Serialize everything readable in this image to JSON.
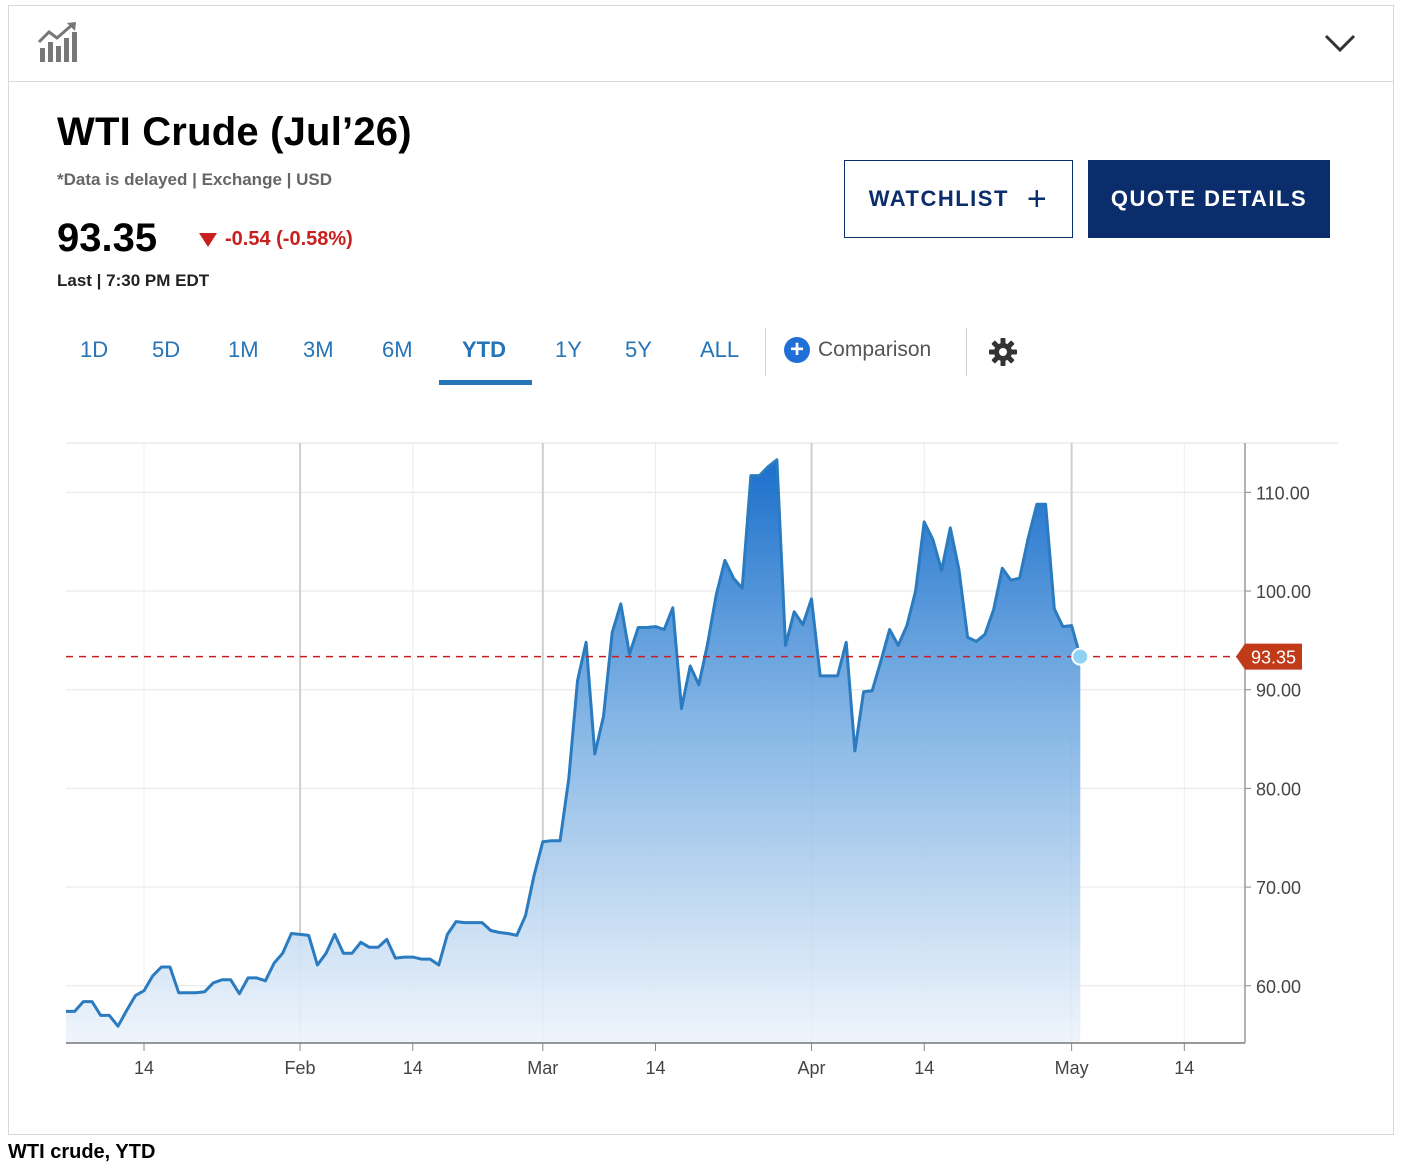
{
  "header": {
    "chart_icon": "bar-chart-trend-icon",
    "collapse_icon": "chevron-down-icon"
  },
  "quote": {
    "title": "WTI Crude (Jul’26)",
    "subline": "*Data is delayed | Exchange | USD",
    "price": "93.35",
    "change": "-0.54 (-0.58%)",
    "last": "Last | 7:30 PM EDT"
  },
  "buttons": {
    "watchlist": "WATCHLIST",
    "watchlist_icon": "plus-icon",
    "quote_details": "QUOTE DETAILS"
  },
  "tabs": [
    "1D",
    "5D",
    "1M",
    "3M",
    "6M",
    "YTD",
    "1Y",
    "5Y",
    "ALL"
  ],
  "active_tab": "YTD",
  "comparison": {
    "label": "Comparison",
    "icon": "plus-circle-icon"
  },
  "settings_icon": "gear-icon",
  "colors": {
    "brand_navy": "#0b2d6b",
    "link_blue": "#2674b8",
    "line_blue": "#2a7bbf",
    "down_red": "#c8201e"
  },
  "caption": "WTI crude, YTD",
  "chart_data": {
    "type": "area",
    "title": "",
    "xlabel": "",
    "ylabel": "",
    "ylim": [
      54.2,
      115.0
    ],
    "yticks": [
      60,
      70,
      80,
      90,
      100,
      110
    ],
    "ytick_labels": [
      "60.00",
      "70.00",
      "80.00",
      "90.00",
      "100.00",
      "110.00"
    ],
    "xlim": [
      "2026-01-05",
      "2026-05-21"
    ],
    "xticks": [
      {
        "date": "2026-01-14",
        "label": "14"
      },
      {
        "date": "2026-02-01",
        "label": "Feb"
      },
      {
        "date": "2026-02-14",
        "label": "14"
      },
      {
        "date": "2026-03-01",
        "label": "Mar"
      },
      {
        "date": "2026-03-14",
        "label": "14"
      },
      {
        "date": "2026-04-01",
        "label": "Apr"
      },
      {
        "date": "2026-04-14",
        "label": "14"
      },
      {
        "date": "2026-05-01",
        "label": "May"
      },
      {
        "date": "2026-05-14",
        "label": "14"
      }
    ],
    "grid": true,
    "last_value": 93.35,
    "last_value_label": "93.35",
    "series": [
      {
        "values": [
          [
            "2026-01-05",
            57.4
          ],
          [
            "2026-01-06",
            57.4
          ],
          [
            "2026-01-07",
            58.4
          ],
          [
            "2026-01-08",
            58.4
          ],
          [
            "2026-01-09",
            57.0
          ],
          [
            "2026-01-10",
            57.0
          ],
          [
            "2026-01-11",
            55.9
          ],
          [
            "2026-01-12",
            57.5
          ],
          [
            "2026-01-13",
            59.0
          ],
          [
            "2026-01-14",
            59.5
          ],
          [
            "2026-01-15",
            61.0
          ],
          [
            "2026-01-16",
            61.9
          ],
          [
            "2026-01-17",
            61.9
          ],
          [
            "2026-01-18",
            59.3
          ],
          [
            "2026-01-19",
            59.3
          ],
          [
            "2026-01-20",
            59.3
          ],
          [
            "2026-01-21",
            59.4
          ],
          [
            "2026-01-22",
            60.3
          ],
          [
            "2026-01-23",
            60.6
          ],
          [
            "2026-01-24",
            60.6
          ],
          [
            "2026-01-25",
            59.2
          ],
          [
            "2026-01-26",
            60.8
          ],
          [
            "2026-01-27",
            60.8
          ],
          [
            "2026-01-28",
            60.5
          ],
          [
            "2026-01-29",
            62.3
          ],
          [
            "2026-01-30",
            63.3
          ],
          [
            "2026-01-31",
            65.3
          ],
          [
            "2026-02-01",
            65.2
          ],
          [
            "2026-02-02",
            65.1
          ],
          [
            "2026-02-03",
            62.1
          ],
          [
            "2026-02-04",
            63.3
          ],
          [
            "2026-02-05",
            65.2
          ],
          [
            "2026-02-06",
            63.3
          ],
          [
            "2026-02-07",
            63.3
          ],
          [
            "2026-02-08",
            64.4
          ],
          [
            "2026-02-09",
            63.9
          ],
          [
            "2026-02-10",
            63.9
          ],
          [
            "2026-02-11",
            64.7
          ],
          [
            "2026-02-12",
            62.8
          ],
          [
            "2026-02-13",
            62.9
          ],
          [
            "2026-02-14",
            62.9
          ],
          [
            "2026-02-15",
            62.7
          ],
          [
            "2026-02-16",
            62.7
          ],
          [
            "2026-02-17",
            62.1
          ],
          [
            "2026-02-18",
            65.2
          ],
          [
            "2026-02-19",
            66.5
          ],
          [
            "2026-02-20",
            66.4
          ],
          [
            "2026-02-21",
            66.4
          ],
          [
            "2026-02-22",
            66.4
          ],
          [
            "2026-02-23",
            65.6
          ],
          [
            "2026-02-24",
            65.4
          ],
          [
            "2026-02-25",
            65.3
          ],
          [
            "2026-02-26",
            65.1
          ],
          [
            "2026-02-27",
            67.1
          ],
          [
            "2026-02-28",
            71.2
          ],
          [
            "2026-03-01",
            74.6
          ],
          [
            "2026-03-02",
            74.7
          ],
          [
            "2026-03-03",
            74.7
          ],
          [
            "2026-03-04",
            81.0
          ],
          [
            "2026-03-05",
            90.9
          ],
          [
            "2026-03-06",
            94.8
          ],
          [
            "2026-03-07",
            83.5
          ],
          [
            "2026-03-08",
            87.3
          ],
          [
            "2026-03-09",
            95.8
          ],
          [
            "2026-03-10",
            98.7
          ],
          [
            "2026-03-11",
            93.6
          ],
          [
            "2026-03-12",
            96.3
          ],
          [
            "2026-03-13",
            96.3
          ],
          [
            "2026-03-14",
            96.4
          ],
          [
            "2026-03-15",
            96.1
          ],
          [
            "2026-03-16",
            98.3
          ],
          [
            "2026-03-17",
            88.1
          ],
          [
            "2026-03-18",
            92.4
          ],
          [
            "2026-03-19",
            90.5
          ],
          [
            "2026-03-20",
            94.6
          ],
          [
            "2026-03-21",
            99.6
          ],
          [
            "2026-03-22",
            103.1
          ],
          [
            "2026-03-23",
            101.3
          ],
          [
            "2026-03-24",
            100.3
          ],
          [
            "2026-03-25",
            111.7
          ],
          [
            "2026-03-26",
            111.7
          ],
          [
            "2026-03-27",
            112.6
          ],
          [
            "2026-03-28",
            113.3
          ],
          [
            "2026-03-29",
            94.5
          ],
          [
            "2026-03-30",
            97.9
          ],
          [
            "2026-03-31",
            96.6
          ],
          [
            "2026-04-01",
            99.2
          ],
          [
            "2026-04-02",
            91.4
          ],
          [
            "2026-04-03",
            91.4
          ],
          [
            "2026-04-04",
            91.4
          ],
          [
            "2026-04-05",
            94.8
          ],
          [
            "2026-04-06",
            83.8
          ],
          [
            "2026-04-07",
            89.8
          ],
          [
            "2026-04-08",
            89.9
          ],
          [
            "2026-04-09",
            92.9
          ],
          [
            "2026-04-10",
            96.1
          ],
          [
            "2026-04-11",
            94.5
          ],
          [
            "2026-04-12",
            96.5
          ],
          [
            "2026-04-13",
            100.0
          ],
          [
            "2026-04-14",
            107.0
          ],
          [
            "2026-04-15",
            105.2
          ],
          [
            "2026-04-16",
            102.1
          ],
          [
            "2026-04-17",
            106.4
          ],
          [
            "2026-04-18",
            102.2
          ],
          [
            "2026-04-19",
            95.3
          ],
          [
            "2026-04-20",
            94.9
          ],
          [
            "2026-04-21",
            95.6
          ],
          [
            "2026-04-22",
            98.1
          ],
          [
            "2026-04-23",
            102.3
          ],
          [
            "2026-04-24",
            101.1
          ],
          [
            "2026-04-25",
            101.3
          ],
          [
            "2026-04-26",
            105.4
          ],
          [
            "2026-04-27",
            108.8
          ],
          [
            "2026-04-28",
            108.8
          ],
          [
            "2026-04-29",
            98.2
          ],
          [
            "2026-04-30",
            96.4
          ],
          [
            "2026-05-01",
            96.5
          ],
          [
            "2026-05-02",
            93.35
          ]
        ]
      }
    ]
  }
}
